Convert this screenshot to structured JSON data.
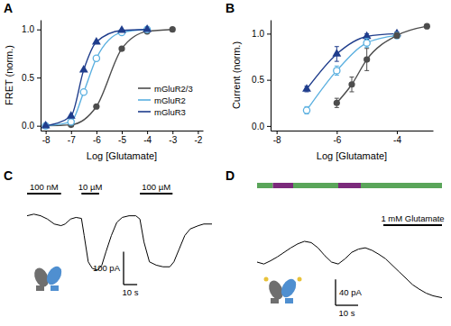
{
  "chart_data": [
    {
      "type": "line",
      "title": "A",
      "x_label": "Log [Glutamate]",
      "y_label": "FRET (norm.)",
      "xlim": [
        -8.2,
        -1.8
      ],
      "xticks": [
        -8,
        -7,
        -6,
        -5,
        -4,
        -3,
        -2
      ],
      "ylim": [
        -0.05,
        1.1
      ],
      "yticks": [
        {
          "value": 0,
          "label": "0.0"
        },
        0.5,
        {
          "value": 1,
          "label": "1.0"
        }
      ],
      "legend": "lower right",
      "series": [
        {
          "name": "mGluR2/3",
          "color": "#4d4d4d",
          "marker": "circle",
          "line_style": "solid",
          "x": [
            -8,
            -7,
            -6,
            -5,
            -4,
            -3
          ],
          "values": [
            0,
            0.01,
            0.2,
            0.8,
            0.98,
            1.0
          ]
        },
        {
          "name": "mGluR2",
          "color": "#5bb0e0",
          "marker": "circle-open",
          "line_style": "solid",
          "x": [
            -8,
            -7,
            -6.5,
            -6,
            -5,
            -4
          ],
          "values": [
            0,
            0.04,
            0.35,
            0.7,
            0.97,
            1.0
          ]
        },
        {
          "name": "mGluR3",
          "color": "#1f3d8c",
          "marker": "triangle",
          "line_style": "solid",
          "x": [
            -8,
            -7,
            -6.5,
            -6,
            -5,
            -4
          ],
          "values": [
            0,
            0.1,
            0.58,
            0.87,
            0.99,
            1.0
          ]
        }
      ]
    },
    {
      "type": "line",
      "title": "B",
      "x_label": "Log [Glutamate]",
      "y_label": "Current (norm.)",
      "xlim": [
        -8.2,
        -2.8
      ],
      "xticks": [
        -8,
        -6,
        -4
      ],
      "ylim": [
        -0.05,
        1.15
      ],
      "yticks": [
        {
          "value": 0,
          "label": "0.0"
        },
        0.5,
        {
          "value": 1,
          "label": "1.0"
        }
      ],
      "series": [
        {
          "color": "#1f3d8c",
          "marker": "triangle",
          "line_style": "solid",
          "x": [
            -7,
            -6,
            -5,
            -4
          ],
          "values": [
            0.4,
            0.78,
            0.97,
            1.0
          ],
          "errors": [
            0.03,
            0.08,
            0.03,
            0.02
          ]
        },
        {
          "color": "#5bb0e0",
          "marker": "circle-open",
          "line_style": "solid",
          "x": [
            -7,
            -6,
            -5,
            -4
          ],
          "values": [
            0.17,
            0.6,
            0.9,
            0.98
          ],
          "errors": [
            0.04,
            0.05,
            0.05,
            0.02
          ]
        },
        {
          "color": "#4d4d4d",
          "marker": "circle",
          "line_style": "solid",
          "x": [
            -6,
            -5.5,
            -5,
            -4,
            -3
          ],
          "values": [
            0.25,
            0.45,
            0.72,
            0.98,
            1.08
          ],
          "errors": [
            0.05,
            0.08,
            0.12,
            0.03,
            0.02
          ]
        }
      ]
    },
    {
      "type": "line",
      "title": "C",
      "tick_labels": false,
      "color": "#000000",
      "xlim": [
        0,
        136
      ],
      "ylim": [
        -220,
        40
      ],
      "x": [
        0,
        5,
        10,
        15,
        20,
        25,
        28,
        32,
        36,
        40,
        42,
        45,
        48,
        52,
        55,
        58,
        62,
        66,
        70,
        75,
        80,
        83,
        86,
        90,
        95,
        100,
        105,
        108,
        112,
        116,
        120,
        126,
        130,
        136
      ],
      "values": [
        0,
        5,
        0,
        -10,
        -25,
        -30,
        -25,
        -10,
        -5,
        -8,
        -60,
        -140,
        -160,
        -165,
        -150,
        -110,
        -60,
        -20,
        -5,
        0,
        0,
        -10,
        -80,
        -140,
        -150,
        -155,
        -155,
        -140,
        -100,
        -60,
        -40,
        -30,
        -25,
        -25
      ],
      "stimuli": [
        {
          "label": "100 nM",
          "start": 0,
          "end": 25
        },
        {
          "label": "10 µM",
          "start": 40,
          "end": 53
        },
        {
          "label": "100 µM",
          "start": 83,
          "end": 107
        }
      ],
      "scale_bars": [
        {
          "label": "100 pA",
          "value": 100
        },
        {
          "label": "10 s",
          "value": 10
        }
      ]
    },
    {
      "type": "line",
      "title": "D",
      "tick_labels": false,
      "color": "#000000",
      "xlim": [
        0,
        82
      ],
      "ylim": [
        -75,
        50
      ],
      "x": [
        0,
        3,
        6,
        9,
        12,
        15,
        18,
        21,
        24,
        27,
        30,
        33,
        36,
        39,
        42,
        45,
        48,
        51,
        54,
        57,
        60,
        63,
        66,
        69,
        72,
        75,
        78,
        82
      ],
      "values": [
        0,
        -3,
        2,
        8,
        15,
        22,
        28,
        32,
        30,
        22,
        10,
        0,
        -3,
        5,
        15,
        20,
        22,
        18,
        12,
        5,
        -5,
        -15,
        -25,
        -35,
        -42,
        -48,
        -52,
        -55
      ],
      "stimuli": [
        {
          "label": "1 mM Glutamate",
          "start": 56,
          "end": 82
        }
      ],
      "light_segments": [
        {
          "start": 0,
          "end": 7,
          "color": "#5aa55a"
        },
        {
          "start": 7,
          "end": 16,
          "color": "#7b2a7b"
        },
        {
          "start": 16,
          "end": 36,
          "color": "#5aa55a"
        },
        {
          "start": 36,
          "end": 46,
          "color": "#7b2a7b"
        },
        {
          "start": 46,
          "end": 82,
          "color": "#5aa55a"
        }
      ],
      "scale_bars": [
        {
          "label": "40 pA",
          "value": 40
        },
        {
          "label": "10 s",
          "value": 10
        }
      ]
    }
  ]
}
